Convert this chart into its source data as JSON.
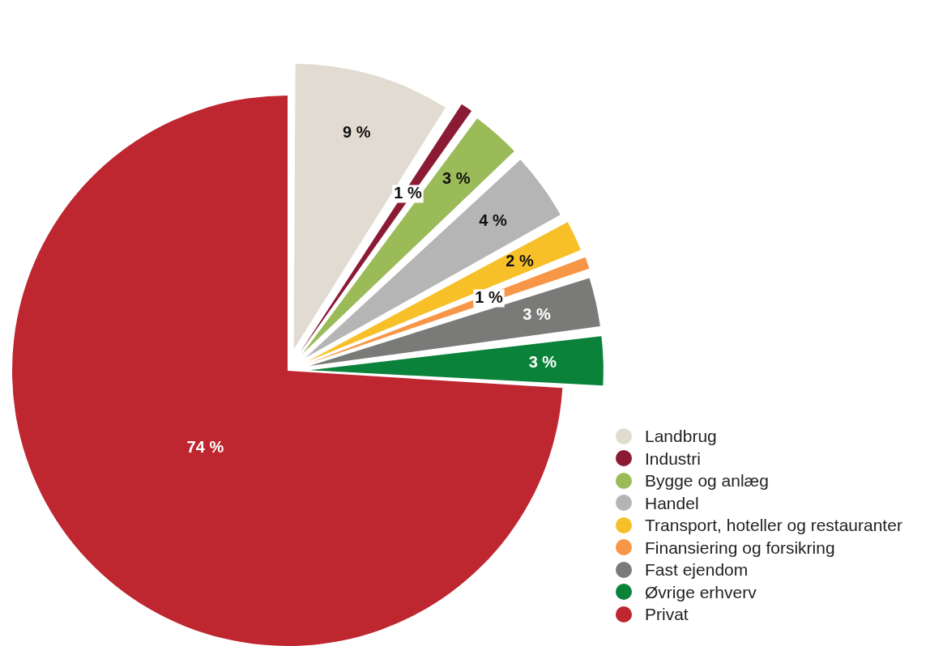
{
  "chart_data": {
    "type": "pie",
    "categories": [
      "Landbrug",
      "Industri",
      "Bygge og anlæg",
      "Handel",
      "Transport, hoteller og restauranter",
      "Finansiering og forsikring",
      "Fast ejendom",
      "Øvrige erhverv",
      "Privat"
    ],
    "values": [
      9,
      1,
      3,
      4,
      2,
      1,
      3,
      3,
      74
    ],
    "colors": [
      "#e2dbd1",
      "#8b1a35",
      "#9bbb59",
      "#b5b5b5",
      "#f7c028",
      "#f79646",
      "#7a7a78",
      "#0a8239",
      "#be2630"
    ],
    "value_labels": [
      "9 %",
      "1 %",
      "3 %",
      "4 %",
      "2 %",
      "1 %",
      "3 %",
      "3 %",
      "74 %"
    ],
    "legend": "bottom right"
  }
}
